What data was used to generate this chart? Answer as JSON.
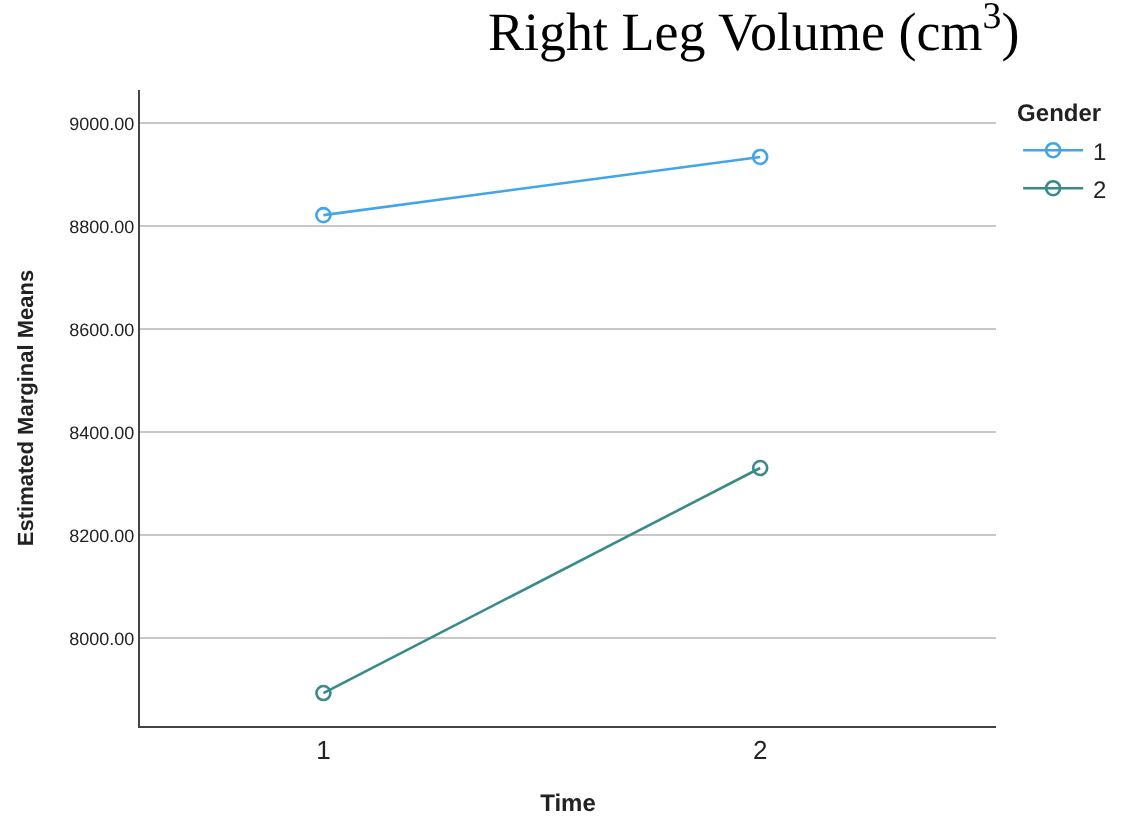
{
  "chart_data": {
    "type": "line",
    "title": "Right Leg Volume (cm$^{3}$)",
    "xlabel": "Time",
    "ylabel": "Estimated Marginal Means",
    "legend_title": "Gender",
    "categories": [
      "1",
      "2"
    ],
    "series": [
      {
        "name": "1",
        "color": "#42a5e8",
        "values": [
          8822,
          8935
        ]
      },
      {
        "name": "2",
        "color": "#3a8a8a",
        "values": [
          7894,
          8331
        ]
      }
    ],
    "ylim": [
      7830,
      9065
    ],
    "yticks": [
      {
        "value": 8000,
        "label": "8000.00"
      },
      {
        "value": 8200,
        "label": "8200.00"
      },
      {
        "value": 8400,
        "label": "8400.00"
      },
      {
        "value": 8600,
        "label": "8600.00"
      },
      {
        "value": 8800,
        "label": "8800.00"
      },
      {
        "value": 9000,
        "label": "9000.00"
      }
    ],
    "grid": "y",
    "legend": "top right",
    "marker": "circle",
    "line_style": "solid"
  }
}
